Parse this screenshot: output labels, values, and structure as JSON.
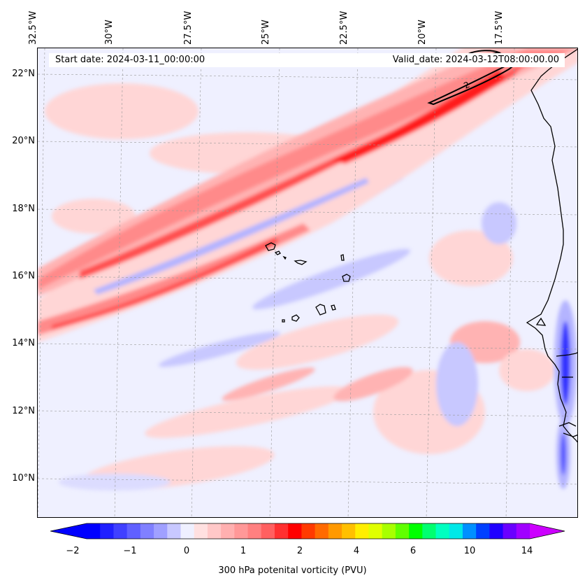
{
  "map": {
    "start_date": "Start date: 2024-03-11_00:00:00",
    "valid_date": "Valid_date: 2024-03-12T08:00:00.00",
    "longitude_labels": [
      "32.5°W",
      "30°W",
      "27.5°W",
      "25°W",
      "22.5°W",
      "20°W",
      "17.5°W"
    ],
    "latitude_labels": [
      "22°N",
      "20°N",
      "18°N",
      "16°N",
      "14°N",
      "12°N",
      "10°N"
    ],
    "contour_label": "2",
    "colors": {
      "background": "#eff0ff",
      "land_outline": "#000000",
      "pale_pink": "#ffd6d6",
      "pink": "#ffb3b3",
      "salmon": "#ff8a8a",
      "red": "#ff5050",
      "bright_red": "#ff1e1e",
      "pale_blue": "#dcdcff",
      "blue": "#b4b4ff",
      "deep_blue": "#3232ff"
    }
  },
  "colorbar": {
    "label": "300 hPa potenital vorticity (PVU)",
    "ticks": [
      "−2",
      "−1",
      "0",
      "1",
      "2",
      "4",
      "6",
      "10",
      "14"
    ],
    "colors": [
      "#0000ff",
      "#2020ff",
      "#4040ff",
      "#6060ff",
      "#8080ff",
      "#a0a0ff",
      "#c8c8ff",
      "#eff0ff",
      "#ffe0e0",
      "#ffc8c8",
      "#ffb0b0",
      "#ff9898",
      "#ff8080",
      "#ff6060",
      "#ff3030",
      "#ff0000",
      "#ff3a00",
      "#ff6a00",
      "#ff9900",
      "#ffc000",
      "#ffee00",
      "#e0ff00",
      "#a8ff00",
      "#60ff00",
      "#00ff00",
      "#00ff70",
      "#00ffc0",
      "#00e8e8",
      "#0090ff",
      "#0040ff",
      "#2000ff",
      "#6a00ff",
      "#a000ff"
    ],
    "extend_left_color": "#0000ff",
    "extend_right_color": "#cc00ff"
  }
}
